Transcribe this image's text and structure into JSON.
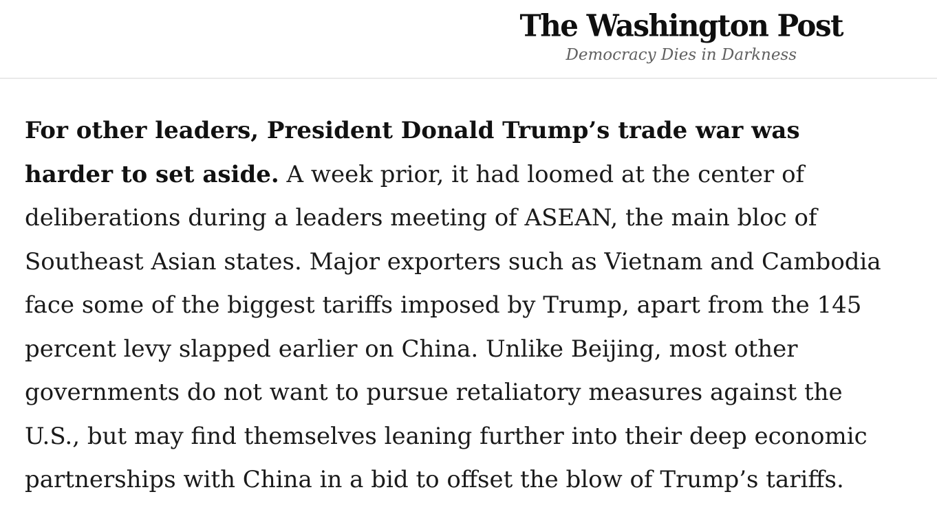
{
  "header": {
    "logo_text": "The Washington Post",
    "tagline": "Democracy Dies in Darkness"
  },
  "article": {
    "paragraph": {
      "lines": [
        {
          "bold": "For other leaders, President Donald Trump’s trade war was",
          "regular": ""
        },
        {
          "bold": "harder to set aside.",
          "regular": " A week prior, it had loomed at the center of"
        },
        {
          "bold": "",
          "regular": "deliberations during a leaders meeting of ASEAN, the main bloc of"
        },
        {
          "bold": "",
          "regular": "Southeast Asian states. Major exporters such as Vietnam and Cambodia"
        },
        {
          "bold": "",
          "regular": "face some of the biggest tariffs imposed by Trump, apart from the 145"
        },
        {
          "bold": "",
          "regular": "percent levy slapped earlier on China. Unlike Beijing, most other"
        },
        {
          "bold": "",
          "regular": "governments do not want to pursue retaliatory measures against the"
        },
        {
          "bold": "",
          "regular": "U.S., but may find themselves leaning further into their deep economic"
        },
        {
          "bold": "",
          "regular": "partnerships with China in a bid to offset the blow of Trump’s tariffs."
        }
      ]
    }
  },
  "colors": {
    "body_text": "#1a1a1a",
    "logo": "#0f0f0f",
    "tagline": "#606060",
    "divider": "#e9e9e9",
    "background": "#ffffff"
  }
}
